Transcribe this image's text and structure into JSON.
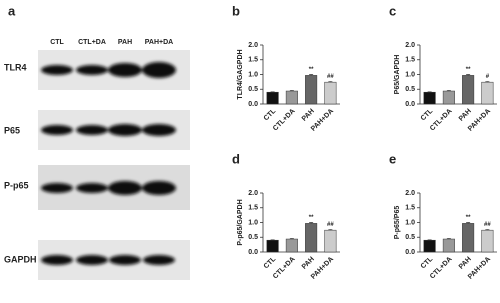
{
  "blot": {
    "panel": "a",
    "lanes": [
      "CTL",
      "CTL+DA",
      "PAH",
      "PAH+DA"
    ],
    "rows": [
      "TLR4",
      "P65",
      "P-p65",
      "GAPDH"
    ]
  },
  "chart_data": [
    {
      "type": "bar",
      "panel": "b",
      "ylabel": "TLR4/GAGPDH",
      "categories": [
        "CTL",
        "CTL+DA",
        "PAH",
        "PAH+DA"
      ],
      "values": [
        0.4,
        0.44,
        0.97,
        0.74
      ],
      "errors": [
        0.01,
        0.02,
        0.03,
        0.02
      ],
      "colors": [
        "#111111",
        "#999999",
        "#666666",
        "#cccccc"
      ],
      "annotations": [
        null,
        null,
        "**",
        "##"
      ],
      "ylim": [
        0,
        2
      ],
      "yticks": [
        {
          "value": 0,
          "label": "0.0"
        },
        {
          "value": 0.5,
          "label": "0.5"
        },
        {
          "value": 1,
          "label": "1.0"
        },
        {
          "value": 1.5,
          "label": "1.5"
        },
        {
          "value": 2,
          "label": "2.0"
        }
      ]
    },
    {
      "type": "bar",
      "panel": "c",
      "ylabel": "P65/GAPDH",
      "categories": [
        "CTL",
        "CTL+DA",
        "PAH",
        "PAH+DA"
      ],
      "values": [
        0.4,
        0.44,
        0.97,
        0.74
      ],
      "errors": [
        0.01,
        0.02,
        0.03,
        0.02
      ],
      "colors": [
        "#111111",
        "#999999",
        "#666666",
        "#cccccc"
      ],
      "annotations": [
        null,
        null,
        "**",
        "#"
      ],
      "ylim": [
        0,
        2
      ],
      "yticks": [
        {
          "value": 0,
          "label": "0.0"
        },
        {
          "value": 0.5,
          "label": "0.5"
        },
        {
          "value": 1,
          "label": "1.0"
        },
        {
          "value": 1.5,
          "label": "1.5"
        },
        {
          "value": 2,
          "label": "2.0"
        }
      ]
    },
    {
      "type": "bar",
      "panel": "d",
      "ylabel": "P-p65/GAPDH",
      "categories": [
        "CTL",
        "CTL+DA",
        "PAH",
        "PAH+DA"
      ],
      "values": [
        0.4,
        0.44,
        0.97,
        0.74
      ],
      "errors": [
        0.01,
        0.02,
        0.03,
        0.02
      ],
      "colors": [
        "#111111",
        "#999999",
        "#666666",
        "#cccccc"
      ],
      "annotations": [
        null,
        null,
        "**",
        "##"
      ],
      "ylim": [
        0,
        2
      ],
      "yticks": [
        {
          "value": 0,
          "label": "0.0"
        },
        {
          "value": 0.5,
          "label": "0.5"
        },
        {
          "value": 1,
          "label": "1.0"
        },
        {
          "value": 1.5,
          "label": "1.5"
        },
        {
          "value": 2,
          "label": "2.0"
        }
      ]
    },
    {
      "type": "bar",
      "panel": "e",
      "ylabel": "P-p65/P65",
      "categories": [
        "CTL",
        "CTL+DA",
        "PAH",
        "PAH+DA"
      ],
      "values": [
        0.4,
        0.44,
        0.97,
        0.74
      ],
      "errors": [
        0.01,
        0.02,
        0.03,
        0.02
      ],
      "colors": [
        "#111111",
        "#999999",
        "#666666",
        "#cccccc"
      ],
      "annotations": [
        null,
        null,
        "**",
        "##"
      ],
      "ylim": [
        0,
        2
      ],
      "yticks": [
        {
          "value": 0,
          "label": "0.0"
        },
        {
          "value": 0.5,
          "label": "0.5"
        },
        {
          "value": 1,
          "label": "1.0"
        },
        {
          "value": 1.5,
          "label": "1.5"
        },
        {
          "value": 2,
          "label": "2.0"
        }
      ]
    }
  ]
}
